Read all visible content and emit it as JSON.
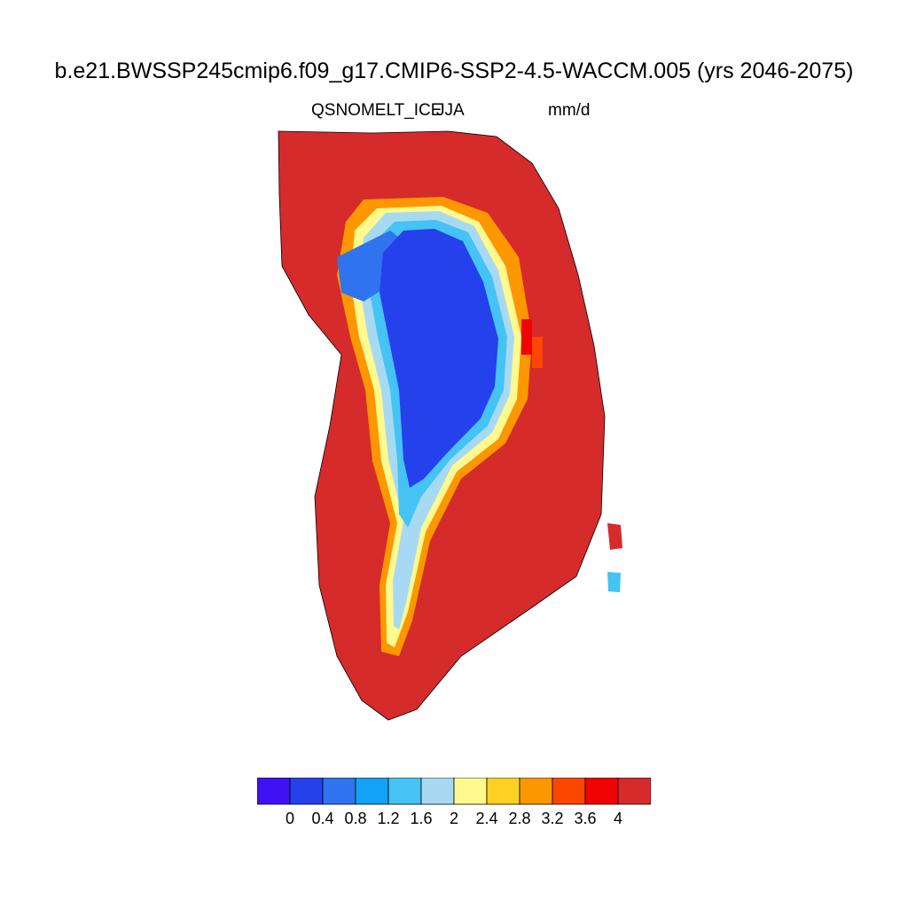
{
  "title": "b.e21.BWSSP245cmip6.f09_g17.CMIP6-SSP2-4.5-WACCM.005 (yrs 2046-2075)",
  "variable": "QSNOMELT_ICE",
  "season": "JJA",
  "units": "mm/d",
  "colors": {
    "ocean": "#ffffff",
    "coastline": "#000000"
  },
  "colorbar": {
    "levels": [
      "0",
      "0.4",
      "0.8",
      "1.2",
      "1.6",
      "2",
      "2.4",
      "2.8",
      "3.2",
      "3.6",
      "4"
    ],
    "colors": [
      "#3e12f2",
      "#2441ec",
      "#2f74ee",
      "#14a2f6",
      "#45c3f4",
      "#a7daf2",
      "#fff98e",
      "#fdd124",
      "#fd9700",
      "#fd4600",
      "#f00303",
      "#d52b2b"
    ]
  }
}
